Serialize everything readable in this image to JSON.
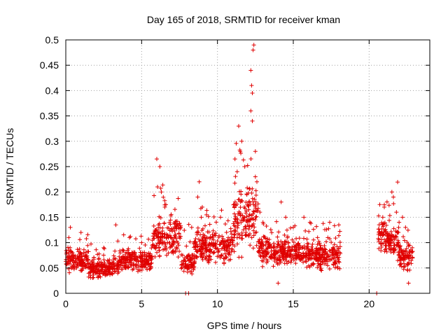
{
  "chart_data": {
    "type": "scatter",
    "title": "Day 165 of 2018, SRMTID for receiver kman",
    "xlabel": "GPS time / hours",
    "ylabel": "SRMTID / TECUs",
    "xlim": [
      0,
      24
    ],
    "ylim": [
      0,
      0.5
    ],
    "x_ticks": [
      0,
      5,
      10,
      15,
      20
    ],
    "x_tick_labels": [
      "0",
      "5",
      "10",
      "15",
      "20"
    ],
    "y_ticks": [
      0,
      0.05,
      0.1,
      0.15,
      0.2,
      0.25,
      0.3,
      0.35,
      0.4,
      0.45,
      0.5
    ],
    "y_tick_labels": [
      "0",
      "0.05",
      "0.1",
      "0.15",
      "0.2",
      "0.25",
      "0.3",
      "0.35",
      "0.4",
      "0.45",
      "0.5"
    ],
    "grid": true,
    "marker": "plus",
    "color": "#e00000",
    "series": [
      {
        "name": "SRMTID",
        "segments": [
          {
            "x_range": [
              0.0,
              1.5
            ],
            "base": 0.065,
            "spread": 0.03,
            "spikes": [
              [
                0.3,
                0.13
              ],
              [
                1.0,
                0.12
              ],
              [
                0.2,
                0.11
              ]
            ]
          },
          {
            "x_range": [
              1.5,
              3.5
            ],
            "base": 0.05,
            "spread": 0.025,
            "spikes": [
              [
                3.3,
                0.135
              ],
              [
                2.5,
                0.09
              ]
            ]
          },
          {
            "x_range": [
              3.5,
              5.7
            ],
            "base": 0.065,
            "spread": 0.03,
            "spikes": [
              [
                4.2,
                0.11
              ],
              [
                5.0,
                0.1
              ]
            ]
          },
          {
            "x_range": [
              5.7,
              7.6
            ],
            "base": 0.11,
            "spread": 0.06,
            "spikes": [
              [
                6.0,
                0.265
              ],
              [
                6.2,
                0.25
              ],
              [
                6.05,
                0.21
              ],
              [
                6.6,
                0.175
              ],
              [
                6.3,
                0.2
              ]
            ]
          },
          {
            "x_range": [
              7.6,
              8.5
            ],
            "base": 0.06,
            "spread": 0.035,
            "spikes": [
              [
                8.1,
                0.0
              ],
              [
                7.9,
                0.0
              ],
              [
                8.3,
                0.13
              ]
            ]
          },
          {
            "x_range": [
              8.5,
              11.0
            ],
            "base": 0.09,
            "spread": 0.04,
            "spikes": [
              [
                8.8,
                0.22
              ],
              [
                8.7,
                0.19
              ],
              [
                9.0,
                0.17
              ],
              [
                10.2,
                0.15
              ]
            ]
          },
          {
            "x_range": [
              11.0,
              11.9
            ],
            "base": 0.14,
            "spread": 0.08,
            "spikes": [
              [
                11.4,
                0.33
              ],
              [
                11.6,
                0.3
              ],
              [
                11.5,
                0.28
              ],
              [
                11.8,
                0.25
              ],
              [
                11.3,
                0.24
              ]
            ]
          },
          {
            "x_range": [
              11.9,
              12.7
            ],
            "base": 0.15,
            "spread": 0.09,
            "spikes": [
              [
                12.4,
                0.49
              ],
              [
                12.35,
                0.48
              ],
              [
                12.2,
                0.44
              ],
              [
                12.25,
                0.41
              ],
              [
                12.3,
                0.395
              ],
              [
                12.2,
                0.36
              ],
              [
                12.3,
                0.34
              ],
              [
                12.5,
                0.28
              ],
              [
                12.5,
                0.23
              ],
              [
                12.6,
                0.22
              ]
            ]
          },
          {
            "x_range": [
              12.7,
              13.5
            ],
            "base": 0.09,
            "spread": 0.04,
            "spikes": [
              [
                13.0,
                0.14
              ],
              [
                12.8,
                0.16
              ]
            ]
          },
          {
            "x_range": [
              13.5,
              15.5
            ],
            "base": 0.08,
            "spread": 0.035,
            "spikes": [
              [
                14.2,
                0.18
              ],
              [
                14.5,
                0.15
              ],
              [
                15.0,
                0.13
              ],
              [
                14.0,
                0.02
              ]
            ]
          },
          {
            "x_range": [
              15.5,
              18.1
            ],
            "base": 0.075,
            "spread": 0.035,
            "spikes": [
              [
                15.7,
                0.15
              ],
              [
                16.1,
                0.14
              ],
              [
                17.4,
                0.14
              ],
              [
                16.6,
                0.11
              ],
              [
                18.0,
                0.135
              ]
            ]
          },
          {
            "x_range": [
              20.5,
              20.6
            ],
            "base": 0.0,
            "spread": 0.0,
            "spikes": [
              [
                20.5,
                0.0
              ]
            ]
          },
          {
            "x_range": [
              20.6,
              21.4
            ],
            "base": 0.11,
            "spread": 0.045,
            "spikes": [
              [
                20.7,
                0.175
              ],
              [
                21.0,
                0.17
              ],
              [
                20.9,
                0.15
              ]
            ]
          },
          {
            "x_range": [
              21.4,
              22.0
            ],
            "base": 0.1,
            "spread": 0.05,
            "spikes": [
              [
                21.5,
                0.2
              ],
              [
                21.6,
                0.19
              ],
              [
                21.8,
                0.16
              ]
            ]
          },
          {
            "x_range": [
              22.0,
              22.9
            ],
            "base": 0.07,
            "spread": 0.035,
            "spikes": [
              [
                22.2,
                0.15
              ],
              [
                22.4,
                0.13
              ],
              [
                22.6,
                0.02
              ]
            ]
          }
        ]
      }
    ]
  }
}
